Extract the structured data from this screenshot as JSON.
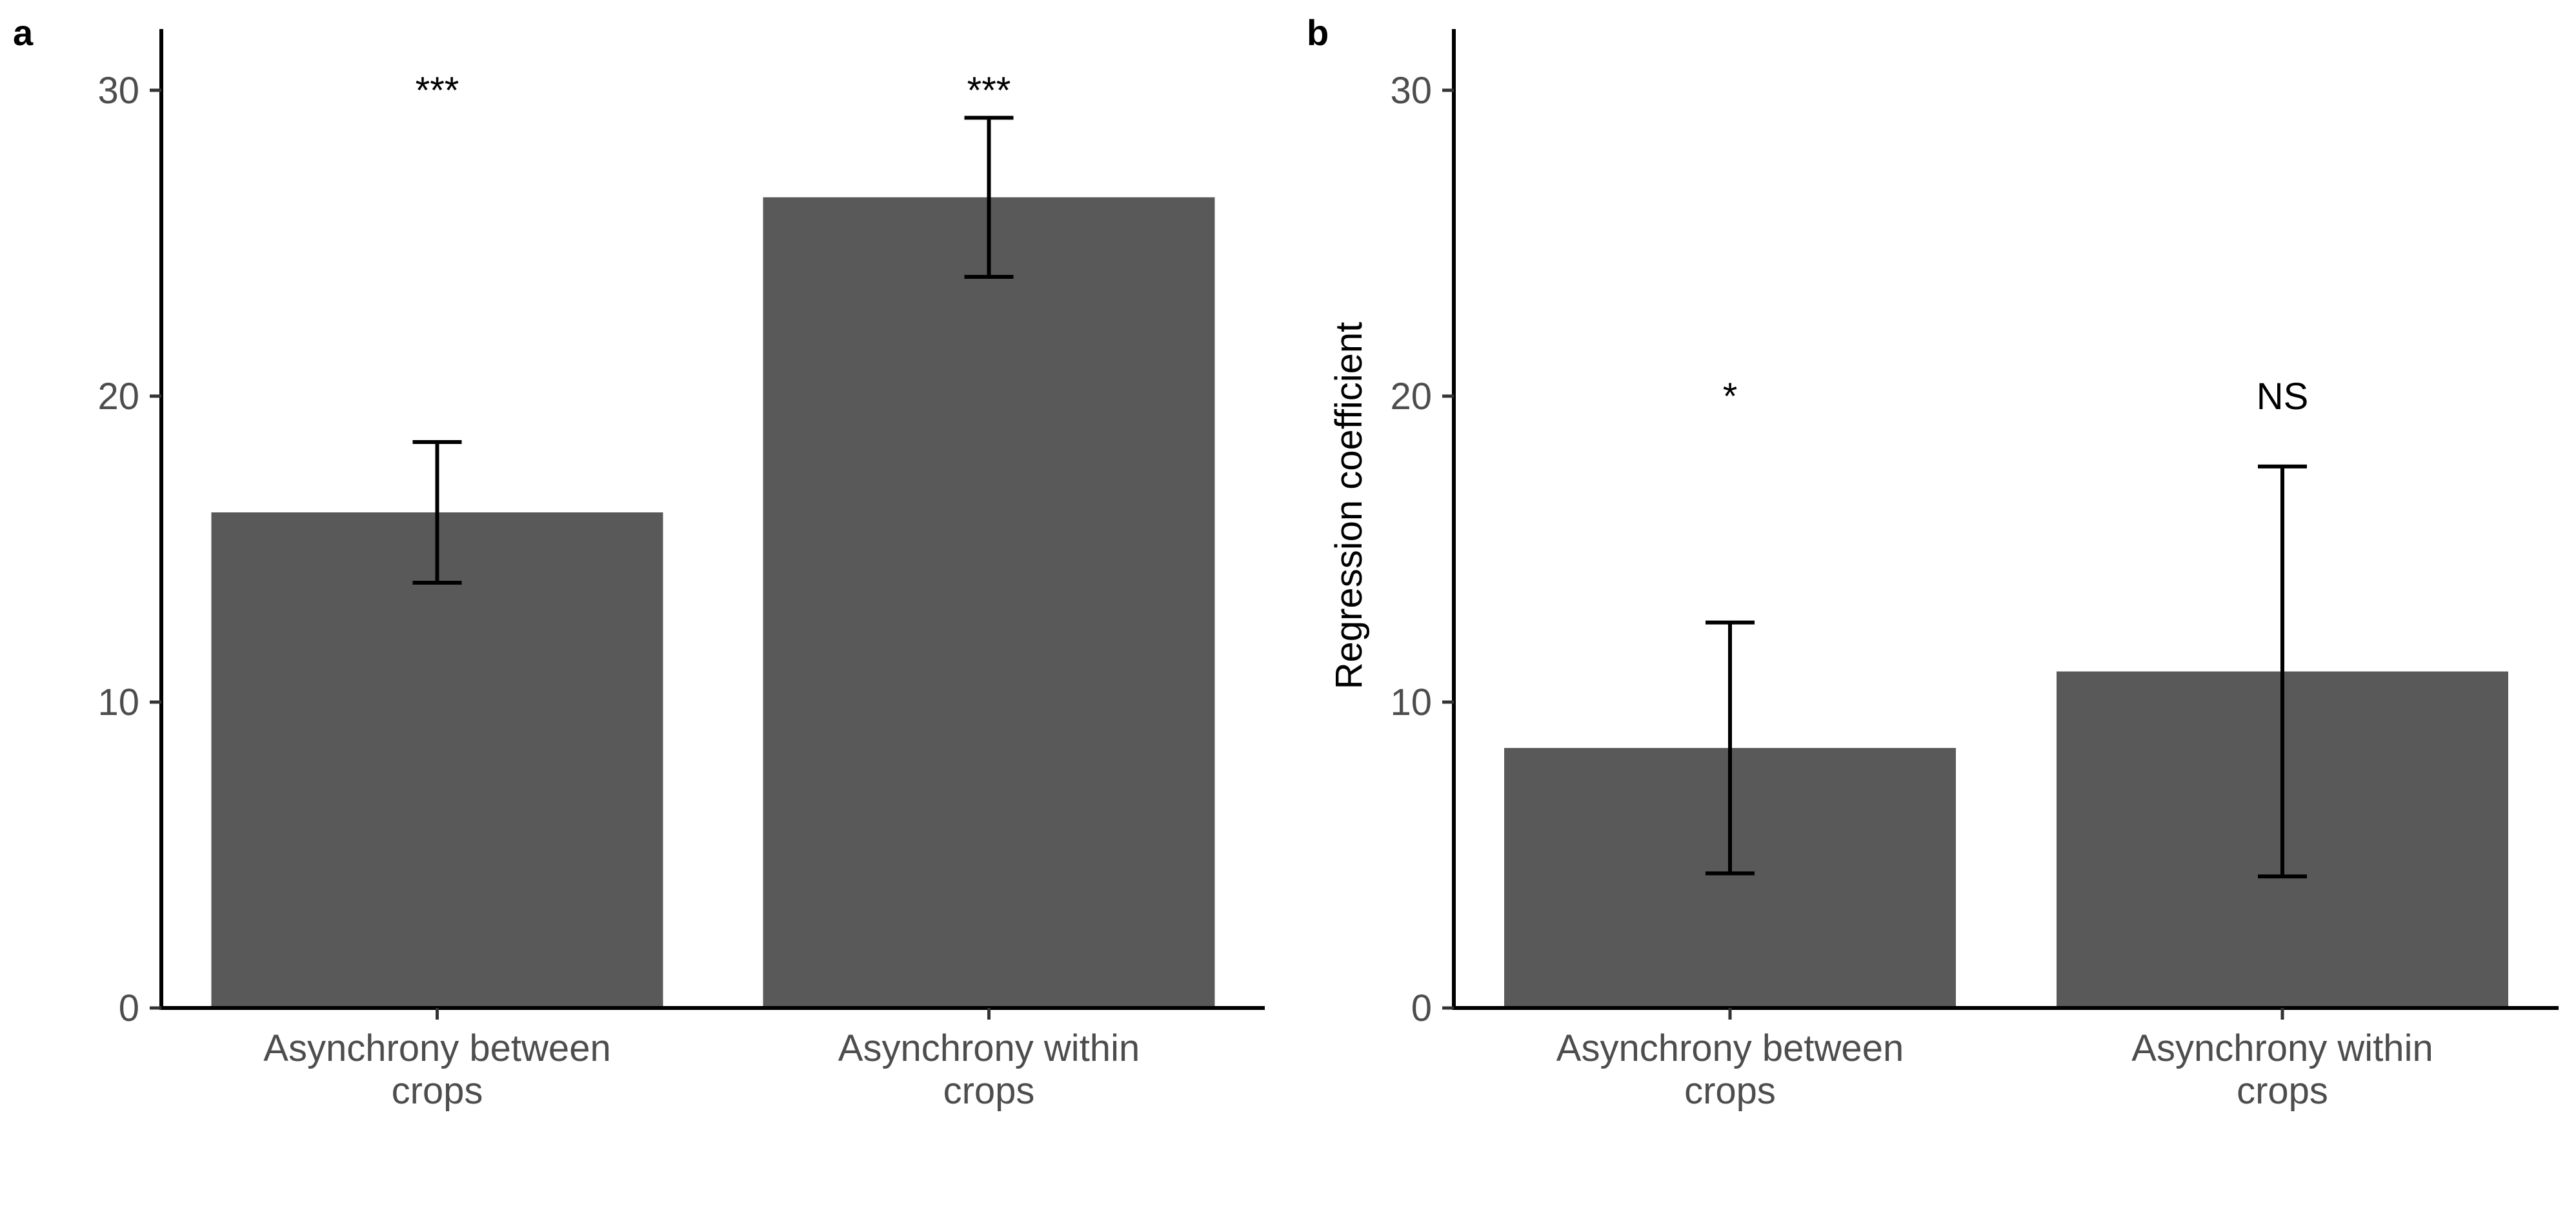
{
  "chart_data": [
    {
      "type": "bar",
      "panel": "a",
      "title": "",
      "xlabel": "",
      "ylabel": "",
      "ylim": [
        0,
        32
      ],
      "yticks": [
        0,
        10,
        20,
        30
      ],
      "grid": false,
      "bar_color": "#595959",
      "categories": [
        "Asynchrony between crops",
        "Asynchrony within crops"
      ],
      "category_lines": [
        [
          "Asynchrony between",
          "crops"
        ],
        [
          "Asynchrony within",
          "crops"
        ]
      ],
      "values": [
        16.2,
        26.5
      ],
      "error_low": [
        13.9,
        23.9
      ],
      "error_high": [
        18.5,
        29.1
      ],
      "significance": [
        "***",
        "***"
      ],
      "significance_y": [
        30,
        30
      ]
    },
    {
      "type": "bar",
      "panel": "b",
      "title": "",
      "xlabel": "",
      "ylabel": "Regression coefficient",
      "ylim": [
        0,
        32
      ],
      "yticks": [
        0,
        10,
        20,
        30
      ],
      "grid": false,
      "bar_color": "#595959",
      "categories": [
        "Asynchrony between crops",
        "Asynchrony within crops"
      ],
      "category_lines": [
        [
          "Asynchrony between",
          "crops"
        ],
        [
          "Asynchrony within",
          "crops"
        ]
      ],
      "values": [
        8.5,
        11.0
      ],
      "error_low": [
        4.4,
        4.3
      ],
      "error_high": [
        12.6,
        17.7
      ],
      "significance": [
        "*",
        "NS"
      ],
      "significance_y": [
        20,
        20
      ]
    }
  ]
}
